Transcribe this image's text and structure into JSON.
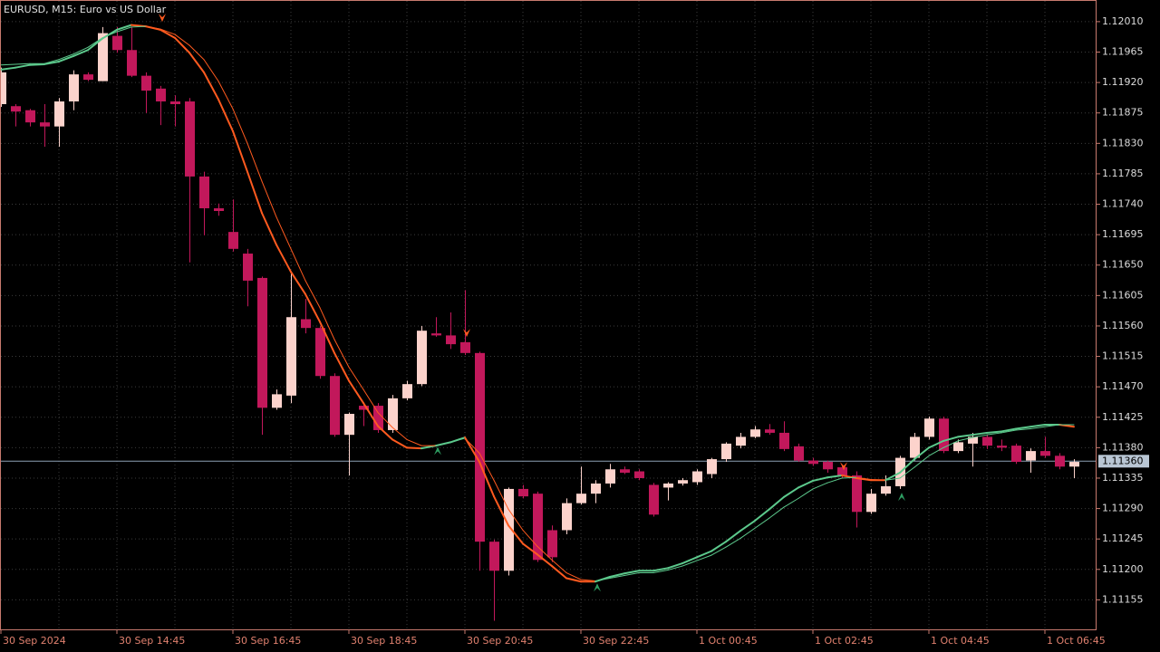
{
  "chart_data": {
    "type": "candlestick",
    "title": "EURUSD, M15:  Euro vs US Dollar",
    "categories": [
      "30 Sep 2024",
      null,
      null,
      null,
      null,
      null,
      null,
      null,
      "30 Sep 14:45",
      null,
      null,
      null,
      null,
      null,
      null,
      null,
      "30 Sep 16:45",
      null,
      null,
      null,
      null,
      null,
      null,
      null,
      "30 Sep 18:45",
      null,
      null,
      null,
      null,
      null,
      null,
      null,
      "30 Sep 20:45",
      null,
      null,
      null,
      null,
      null,
      null,
      null,
      "30 Sep 22:45",
      null,
      null,
      null,
      null,
      null,
      null,
      null,
      "1 Oct 00:45",
      null,
      null,
      null,
      null,
      null,
      null,
      null,
      "1 Oct 02:45",
      null,
      null,
      null,
      null,
      null,
      null,
      null,
      "1 Oct 04:45",
      null,
      null,
      null,
      null,
      null,
      null,
      null,
      "1 Oct 06:45",
      null,
      null
    ],
    "open": [
      1.11888,
      1.11885,
      1.11879,
      1.11861,
      1.11855,
      1.11892,
      1.11932,
      1.11922,
      1.11989,
      1.11968,
      1.1193,
      1.11911,
      1.11892,
      1.11892,
      1.11781,
      1.11734,
      1.11699,
      1.11667,
      1.11631,
      1.11439,
      1.11457,
      1.1157,
      1.11557,
      1.11486,
      1.11399,
      1.11442,
      1.11442,
      1.11406,
      1.11453,
      1.11474,
      1.11549,
      1.11546,
      1.11536,
      1.1152,
      1.11241,
      1.11198,
      1.11319,
      1.11312,
      1.11258,
      1.11258,
      1.11298,
      1.11312,
      1.11327,
      1.11348,
      1.11345,
      1.11325,
      1.11321,
      1.11327,
      1.11329,
      1.11341,
      1.11363,
      1.11383,
      1.11396,
      1.11407,
      1.11402,
      1.11382,
      1.11361,
      1.11359,
      1.11351,
      1.11339,
      1.11285,
      1.11312,
      1.11323,
      1.11365,
      1.11396,
      1.11423,
      1.11375,
      1.11386,
      1.11396,
      1.11383,
      1.11383,
      1.11361,
      1.11375,
      1.11368,
      1.11352
    ],
    "high": [
      1.11942,
      1.11888,
      1.11881,
      1.11888,
      1.11897,
      1.11938,
      1.11935,
      1.12002,
      1.12002,
      1.12002,
      1.11935,
      1.11915,
      1.11901,
      1.11897,
      1.11788,
      1.11741,
      1.11747,
      1.11674,
      1.11633,
      1.11466,
      1.1164,
      1.116,
      1.1156,
      1.1149,
      1.11432,
      1.11446,
      1.11446,
      1.11458,
      1.11479,
      1.1156,
      1.11573,
      1.1158,
      1.11613,
      1.11522,
      1.11244,
      1.11321,
      1.11325,
      1.11315,
      1.11265,
      1.11305,
      1.11352,
      1.11332,
      1.11356,
      1.11352,
      1.11348,
      1.11328,
      1.11329,
      1.11335,
      1.11348,
      1.11365,
      1.11388,
      1.11402,
      1.11412,
      1.11415,
      1.11419,
      1.11386,
      1.11365,
      1.11361,
      1.11353,
      1.11345,
      1.11319,
      1.11339,
      1.11368,
      1.11402,
      1.11426,
      1.11426,
      1.11392,
      1.11402,
      1.11399,
      1.11392,
      1.11386,
      1.11379,
      1.11396,
      1.11372,
      1.11363
    ],
    "low": [
      1.11884,
      1.11855,
      1.11855,
      1.11825,
      1.11825,
      1.11879,
      1.11922,
      1.11922,
      1.11964,
      1.11928,
      1.11875,
      1.11857,
      1.11855,
      1.11654,
      1.11694,
      1.11723,
      1.1167,
      1.11589,
      1.11399,
      1.11436,
      1.11446,
      1.11549,
      1.11482,
      1.11396,
      1.11339,
      1.11412,
      1.11402,
      1.11402,
      1.1145,
      1.11471,
      1.11544,
      1.11526,
      1.11517,
      1.11198,
      1.11124,
      1.11191,
      1.11305,
      1.11211,
      1.11211,
      1.11252,
      1.11296,
      1.11298,
      1.11321,
      1.11341,
      1.11332,
      1.11278,
      1.11302,
      1.11324,
      1.11325,
      1.11335,
      1.11359,
      1.11379,
      1.11394,
      1.11399,
      1.11375,
      1.11359,
      1.11353,
      1.11343,
      1.11335,
      1.11262,
      1.11282,
      1.11309,
      1.11319,
      1.11361,
      1.11392,
      1.11372,
      1.11372,
      1.11352,
      1.11378,
      1.11375,
      1.11356,
      1.11343,
      1.11365,
      1.11348,
      1.11335
    ],
    "close": [
      1.11935,
      1.11877,
      1.11861,
      1.11855,
      1.11892,
      1.11932,
      1.11924,
      1.11993,
      1.11968,
      1.1193,
      1.11908,
      1.11892,
      1.11888,
      1.11781,
      1.11734,
      1.1173,
      1.11674,
      1.11627,
      1.11439,
      1.11459,
      1.11573,
      1.11557,
      1.11486,
      1.11399,
      1.1143,
      1.11436,
      1.11406,
      1.11453,
      1.11474,
      1.11553,
      1.11546,
      1.11533,
      1.1152,
      1.11241,
      1.11198,
      1.11319,
      1.11308,
      1.11214,
      1.11218,
      1.11298,
      1.11312,
      1.11327,
      1.11348,
      1.11343,
      1.11335,
      1.11281,
      1.11327,
      1.11332,
      1.11345,
      1.11363,
      1.11386,
      1.11396,
      1.11407,
      1.11402,
      1.11378,
      1.11361,
      1.11356,
      1.11348,
      1.11339,
      1.11285,
      1.11312,
      1.11323,
      1.11365,
      1.11396,
      1.11423,
      1.11375,
      1.11388,
      1.11396,
      1.11383,
      1.1138,
      1.11359,
      1.11375,
      1.11368,
      1.11352,
      1.11359
    ],
    "up_color": "#fcd3cc",
    "down_color": "#c2185b",
    "lines": [
      {
        "width": 2,
        "up_color": "#5cc98c",
        "down_color": "#ff5a1f",
        "values": [
          1.11939,
          1.11942,
          1.11946,
          1.11947,
          1.11951,
          1.11959,
          1.11968,
          1.11985,
          1.11998,
          1.12005,
          1.12003,
          1.11998,
          1.11986,
          1.11964,
          1.11935,
          1.11895,
          1.11848,
          1.11788,
          1.11727,
          1.1168,
          1.1164,
          1.11607,
          1.11566,
          1.1152,
          1.11479,
          1.11446,
          1.11412,
          1.11392,
          1.1138,
          1.11379,
          1.11383,
          1.11388,
          1.11395,
          1.11359,
          1.11308,
          1.11265,
          1.11238,
          1.11222,
          1.11205,
          1.11187,
          1.11182,
          1.11182,
          1.11189,
          1.11194,
          1.11198,
          1.11198,
          1.11202,
          1.11209,
          1.11218,
          1.11227,
          1.11241,
          1.11257,
          1.11272,
          1.11289,
          1.11307,
          1.11321,
          1.11331,
          1.11336,
          1.11339,
          1.11335,
          1.11332,
          1.11332,
          1.11343,
          1.11363,
          1.1138,
          1.1139,
          1.11396,
          1.11399,
          1.11402,
          1.11404,
          1.11408,
          1.11411,
          1.11414,
          1.11414,
          1.11411
        ]
      },
      {
        "width": 1,
        "up_color": "#5cc98c",
        "down_color": "#ff5a1f",
        "values": [
          1.11946,
          1.11947,
          1.11948,
          1.11948,
          1.11954,
          1.11962,
          1.11972,
          1.11986,
          1.11995,
          1.12002,
          1.12003,
          1.11999,
          1.11991,
          1.11975,
          1.11954,
          1.11922,
          1.11881,
          1.1183,
          1.11774,
          1.11721,
          1.11674,
          1.11627,
          1.11587,
          1.1154,
          1.11499,
          1.11466,
          1.11432,
          1.1141,
          1.11392,
          1.11383,
          1.11383,
          1.11388,
          1.11394,
          1.11372,
          1.11332,
          1.11289,
          1.11258,
          1.11234,
          1.11214,
          1.11195,
          1.11185,
          1.11183,
          1.11187,
          1.11191,
          1.11195,
          1.11195,
          1.11199,
          1.11205,
          1.11213,
          1.11221,
          1.11233,
          1.11246,
          1.11261,
          1.11276,
          1.11292,
          1.11305,
          1.11319,
          1.11328,
          1.11335,
          1.11336,
          1.11333,
          1.11332,
          1.11335,
          1.11351,
          1.11368,
          1.1138,
          1.1139,
          1.11395,
          1.11399,
          1.11402,
          1.11406,
          1.11408,
          1.11411,
          1.11414,
          1.11414
        ]
      }
    ],
    "down_arrows": {
      "color": "#ff5a1f",
      "values": [
        null,
        null,
        null,
        null,
        null,
        null,
        null,
        null,
        null,
        null,
        null,
        1.12015,
        null,
        null,
        null,
        null,
        null,
        null,
        null,
        null,
        null,
        null,
        null,
        null,
        null,
        null,
        null,
        null,
        null,
        null,
        null,
        null,
        1.11549,
        null,
        null,
        null,
        null,
        null,
        null,
        null,
        null,
        null,
        null,
        null,
        null,
        null,
        null,
        null,
        null,
        null,
        null,
        null,
        null,
        null,
        null,
        null,
        null,
        null,
        1.11352,
        null,
        null,
        null,
        null,
        null,
        null,
        null,
        null,
        null,
        null,
        null,
        null,
        null,
        null,
        null,
        null
      ]
    },
    "up_arrows": {
      "color": "#2e9e62",
      "values": [
        null,
        null,
        null,
        null,
        null,
        null,
        null,
        null,
        null,
        null,
        null,
        null,
        null,
        null,
        null,
        null,
        null,
        null,
        null,
        null,
        null,
        null,
        null,
        null,
        null,
        null,
        null,
        null,
        null,
        null,
        1.11376,
        null,
        null,
        null,
        null,
        null,
        null,
        null,
        null,
        null,
        null,
        1.11174,
        null,
        null,
        null,
        null,
        null,
        null,
        null,
        null,
        null,
        null,
        null,
        null,
        null,
        null,
        null,
        null,
        null,
        null,
        null,
        null,
        1.11308,
        null,
        null,
        null,
        null,
        null,
        null,
        null,
        null,
        null,
        null,
        null,
        null
      ]
    },
    "current_price": {
      "value": 1.1136,
      "label": "1.11360"
    },
    "ylim": [
      1.1111,
      1.12042
    ],
    "yticks": [
      {
        "value": 1.1201,
        "label": "1.12010"
      },
      1.11965,
      {
        "value": 1.1192,
        "label": "1.11920"
      },
      1.11875,
      {
        "value": 1.1183,
        "label": "1.11830"
      },
      1.11785,
      {
        "value": 1.1174,
        "label": "1.11740"
      },
      1.11695,
      {
        "value": 1.1165,
        "label": "1.11650"
      },
      1.11605,
      {
        "value": 1.1156,
        "label": "1.11560"
      },
      1.11515,
      {
        "value": 1.1147,
        "label": "1.11470"
      },
      1.11425,
      {
        "value": 1.1138,
        "label": "1.11380"
      },
      1.11335,
      {
        "value": 1.1129,
        "label": "1.11290"
      },
      1.11245,
      {
        "value": 1.112,
        "label": "1.11200"
      },
      1.11155
    ],
    "grid": true
  }
}
